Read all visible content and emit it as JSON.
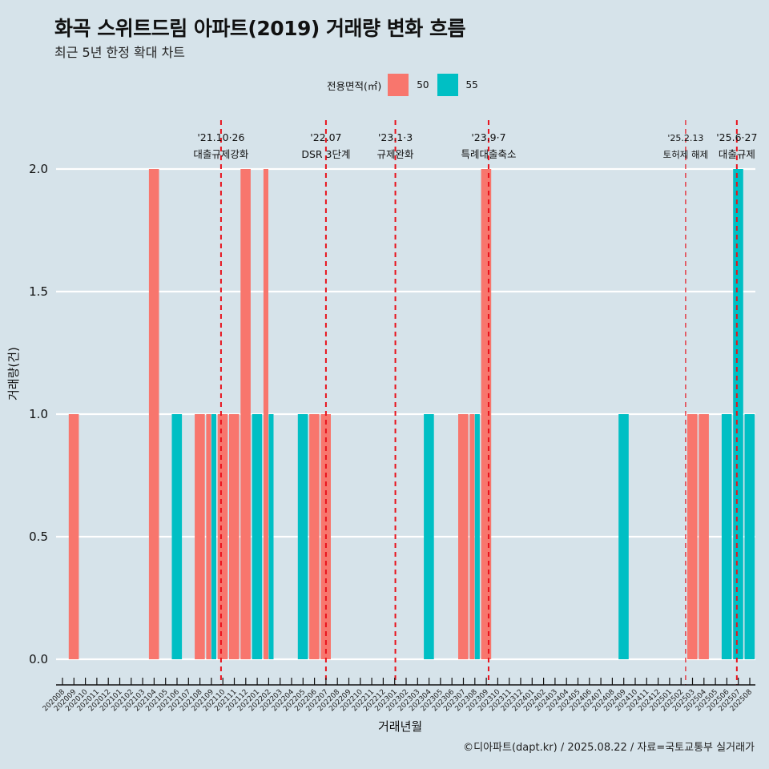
{
  "header": {
    "title": "화곡 스위트드림 아파트(2019) 거래량 변화 흐름",
    "subtitle": "최근 5년 한정 확대 차트"
  },
  "legend": {
    "title": "전용면적(㎡)",
    "items": [
      {
        "label": "50",
        "color": "#F8766D"
      },
      {
        "label": "55",
        "color": "#00BFC4"
      }
    ]
  },
  "footer": "©디아파트(dapt.kr) / 2025.08.22 / 자료=국토교통부 실거래가",
  "chart_data": {
    "type": "bar",
    "title": "화곡 스위트드림 아파트(2019) 거래량 변화 흐름",
    "subtitle": "최근 5년 한정 확대 차트",
    "xlabel": "거래년월",
    "ylabel": "거래량(건)",
    "ylim": [
      0,
      2
    ],
    "yticks": [
      "0.0",
      "0.5",
      "1.0",
      "1.5",
      "2.0"
    ],
    "ytick_values": [
      0,
      0.5,
      1.0,
      1.5,
      2.0
    ],
    "grid": true,
    "legend_position": "top",
    "categories": [
      "202008",
      "202009",
      "202010",
      "202011",
      "202012",
      "202101",
      "202102",
      "202103",
      "202104",
      "202105",
      "202106",
      "202107",
      "202108",
      "202109",
      "202110",
      "202111",
      "202112",
      "202201",
      "202202",
      "202203",
      "202204",
      "202205",
      "202206",
      "202207",
      "202208",
      "202209",
      "202210",
      "202211",
      "202212",
      "202301",
      "202302",
      "202303",
      "202304",
      "202305",
      "202306",
      "202307",
      "202308",
      "202309",
      "202310",
      "202311",
      "202312",
      "202401",
      "202402",
      "202403",
      "202404",
      "202405",
      "202406",
      "202407",
      "202408",
      "202409",
      "202410",
      "202411",
      "202412",
      "202501",
      "202502",
      "202503",
      "202504",
      "202505",
      "202506",
      "202507",
      "202508"
    ],
    "series": [
      {
        "name": "50",
        "color": "#F8766D",
        "points": [
          {
            "x": "202009",
            "y": 1
          },
          {
            "x": "202104",
            "y": 2
          },
          {
            "x": "202108",
            "y": 1
          },
          {
            "x": "202109",
            "y": 1
          },
          {
            "x": "202110",
            "y": 1
          },
          {
            "x": "202111",
            "y": 1
          },
          {
            "x": "202112",
            "y": 2
          },
          {
            "x": "202202",
            "y": 2
          },
          {
            "x": "202206",
            "y": 1
          },
          {
            "x": "202207",
            "y": 1
          },
          {
            "x": "202307",
            "y": 1
          },
          {
            "x": "202308",
            "y": 1
          },
          {
            "x": "202309",
            "y": 2
          },
          {
            "x": "202503",
            "y": 1
          },
          {
            "x": "202504",
            "y": 1
          }
        ]
      },
      {
        "name": "55",
        "color": "#00BFC4",
        "points": [
          {
            "x": "202106",
            "y": 1
          },
          {
            "x": "202109",
            "y": 1
          },
          {
            "x": "202201",
            "y": 1
          },
          {
            "x": "202202",
            "y": 1
          },
          {
            "x": "202205",
            "y": 1
          },
          {
            "x": "202304",
            "y": 1
          },
          {
            "x": "202308",
            "y": 1
          },
          {
            "x": "202409",
            "y": 1
          },
          {
            "x": "202506",
            "y": 1
          },
          {
            "x": "202507",
            "y": 2
          },
          {
            "x": "202508",
            "y": 1
          }
        ]
      }
    ],
    "annotations": [
      {
        "x": 13.84,
        "date": "'21.10·26",
        "label": "대출규제강화"
      },
      {
        "x": 23,
        "date": "'22.07",
        "label": "DSR 3단계"
      },
      {
        "x": 29.06,
        "date": "'23.1·3",
        "label": "규제완화"
      },
      {
        "x": 37.2,
        "date": "'23.9·7",
        "label": "특례대출축소"
      },
      {
        "x": 54.4,
        "date": "'25.2.13",
        "label": "토허제 해제"
      },
      {
        "x": 58.87,
        "date": "'25.6·27",
        "label": "대출규제"
      }
    ]
  }
}
